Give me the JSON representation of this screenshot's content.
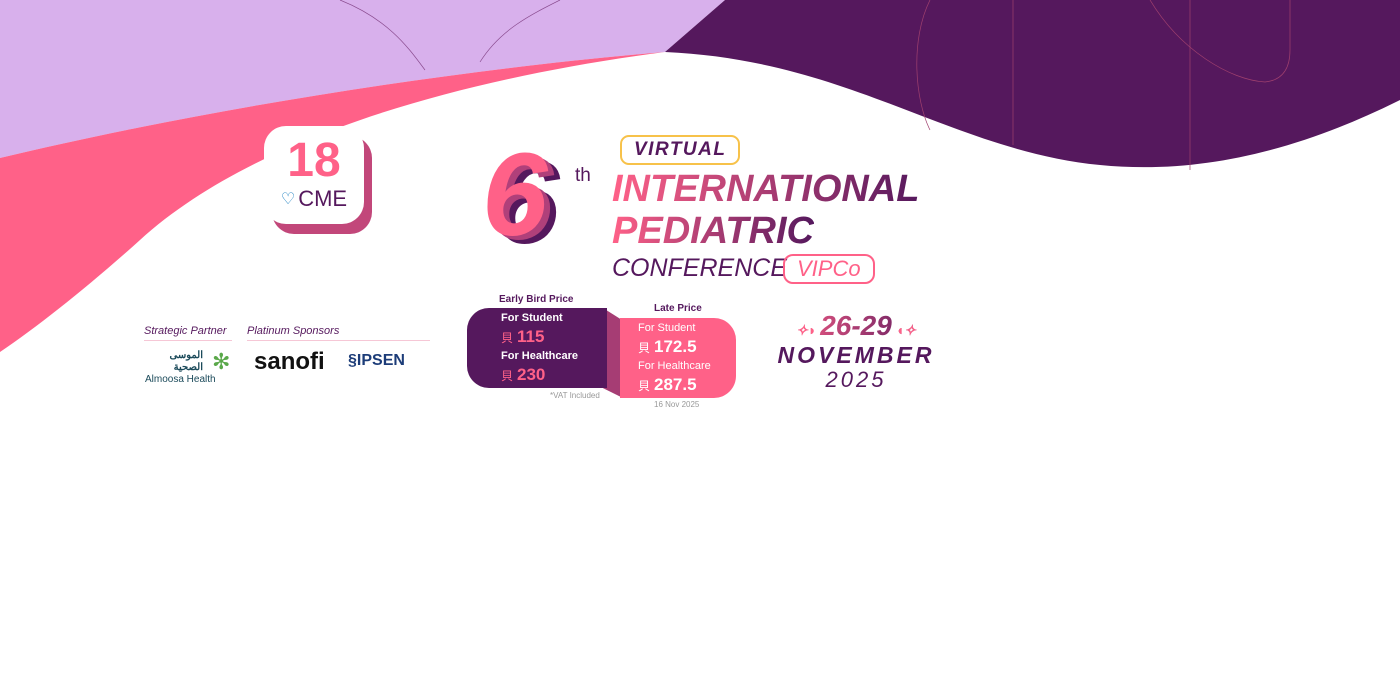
{
  "colors": {
    "lavender": "#d8b0ec",
    "pink": "#ff6188",
    "purple": "#55185d",
    "gold": "#f7c24a"
  },
  "cme": {
    "number": "18",
    "label": "CME",
    "icon": "heart-pulse-icon"
  },
  "title": {
    "edition": "6",
    "suffix": "th",
    "virtual": "VIRTUAL",
    "line1": "INTERNATIONAL",
    "line2": "PEDIATRIC",
    "line3": "CONFERENCE",
    "acronym": "VIPCo"
  },
  "partners": {
    "strategic_label": "Strategic Partner",
    "strategic_arabic": "الموسى الصحية",
    "strategic_name": "Almoosa Health",
    "platinum_label": "Platinum Sponsors",
    "sponsors": [
      "sanofi",
      "IPSEN"
    ]
  },
  "pricing": {
    "currency": "⃁",
    "early": {
      "title": "Early Bird Price",
      "student_label": "For Student",
      "student_price": "115",
      "healthcare_label": "For Healthcare",
      "healthcare_price": "230",
      "note": "*VAT Included"
    },
    "late": {
      "title": "Late Price",
      "student_label": "For Student",
      "student_price": "172.5",
      "healthcare_label": "For Healthcare",
      "healthcare_price": "287.5",
      "note": "16 Nov 2025"
    }
  },
  "dates": {
    "days": "26-29",
    "month": "NOVEMBER",
    "year": "2025"
  }
}
